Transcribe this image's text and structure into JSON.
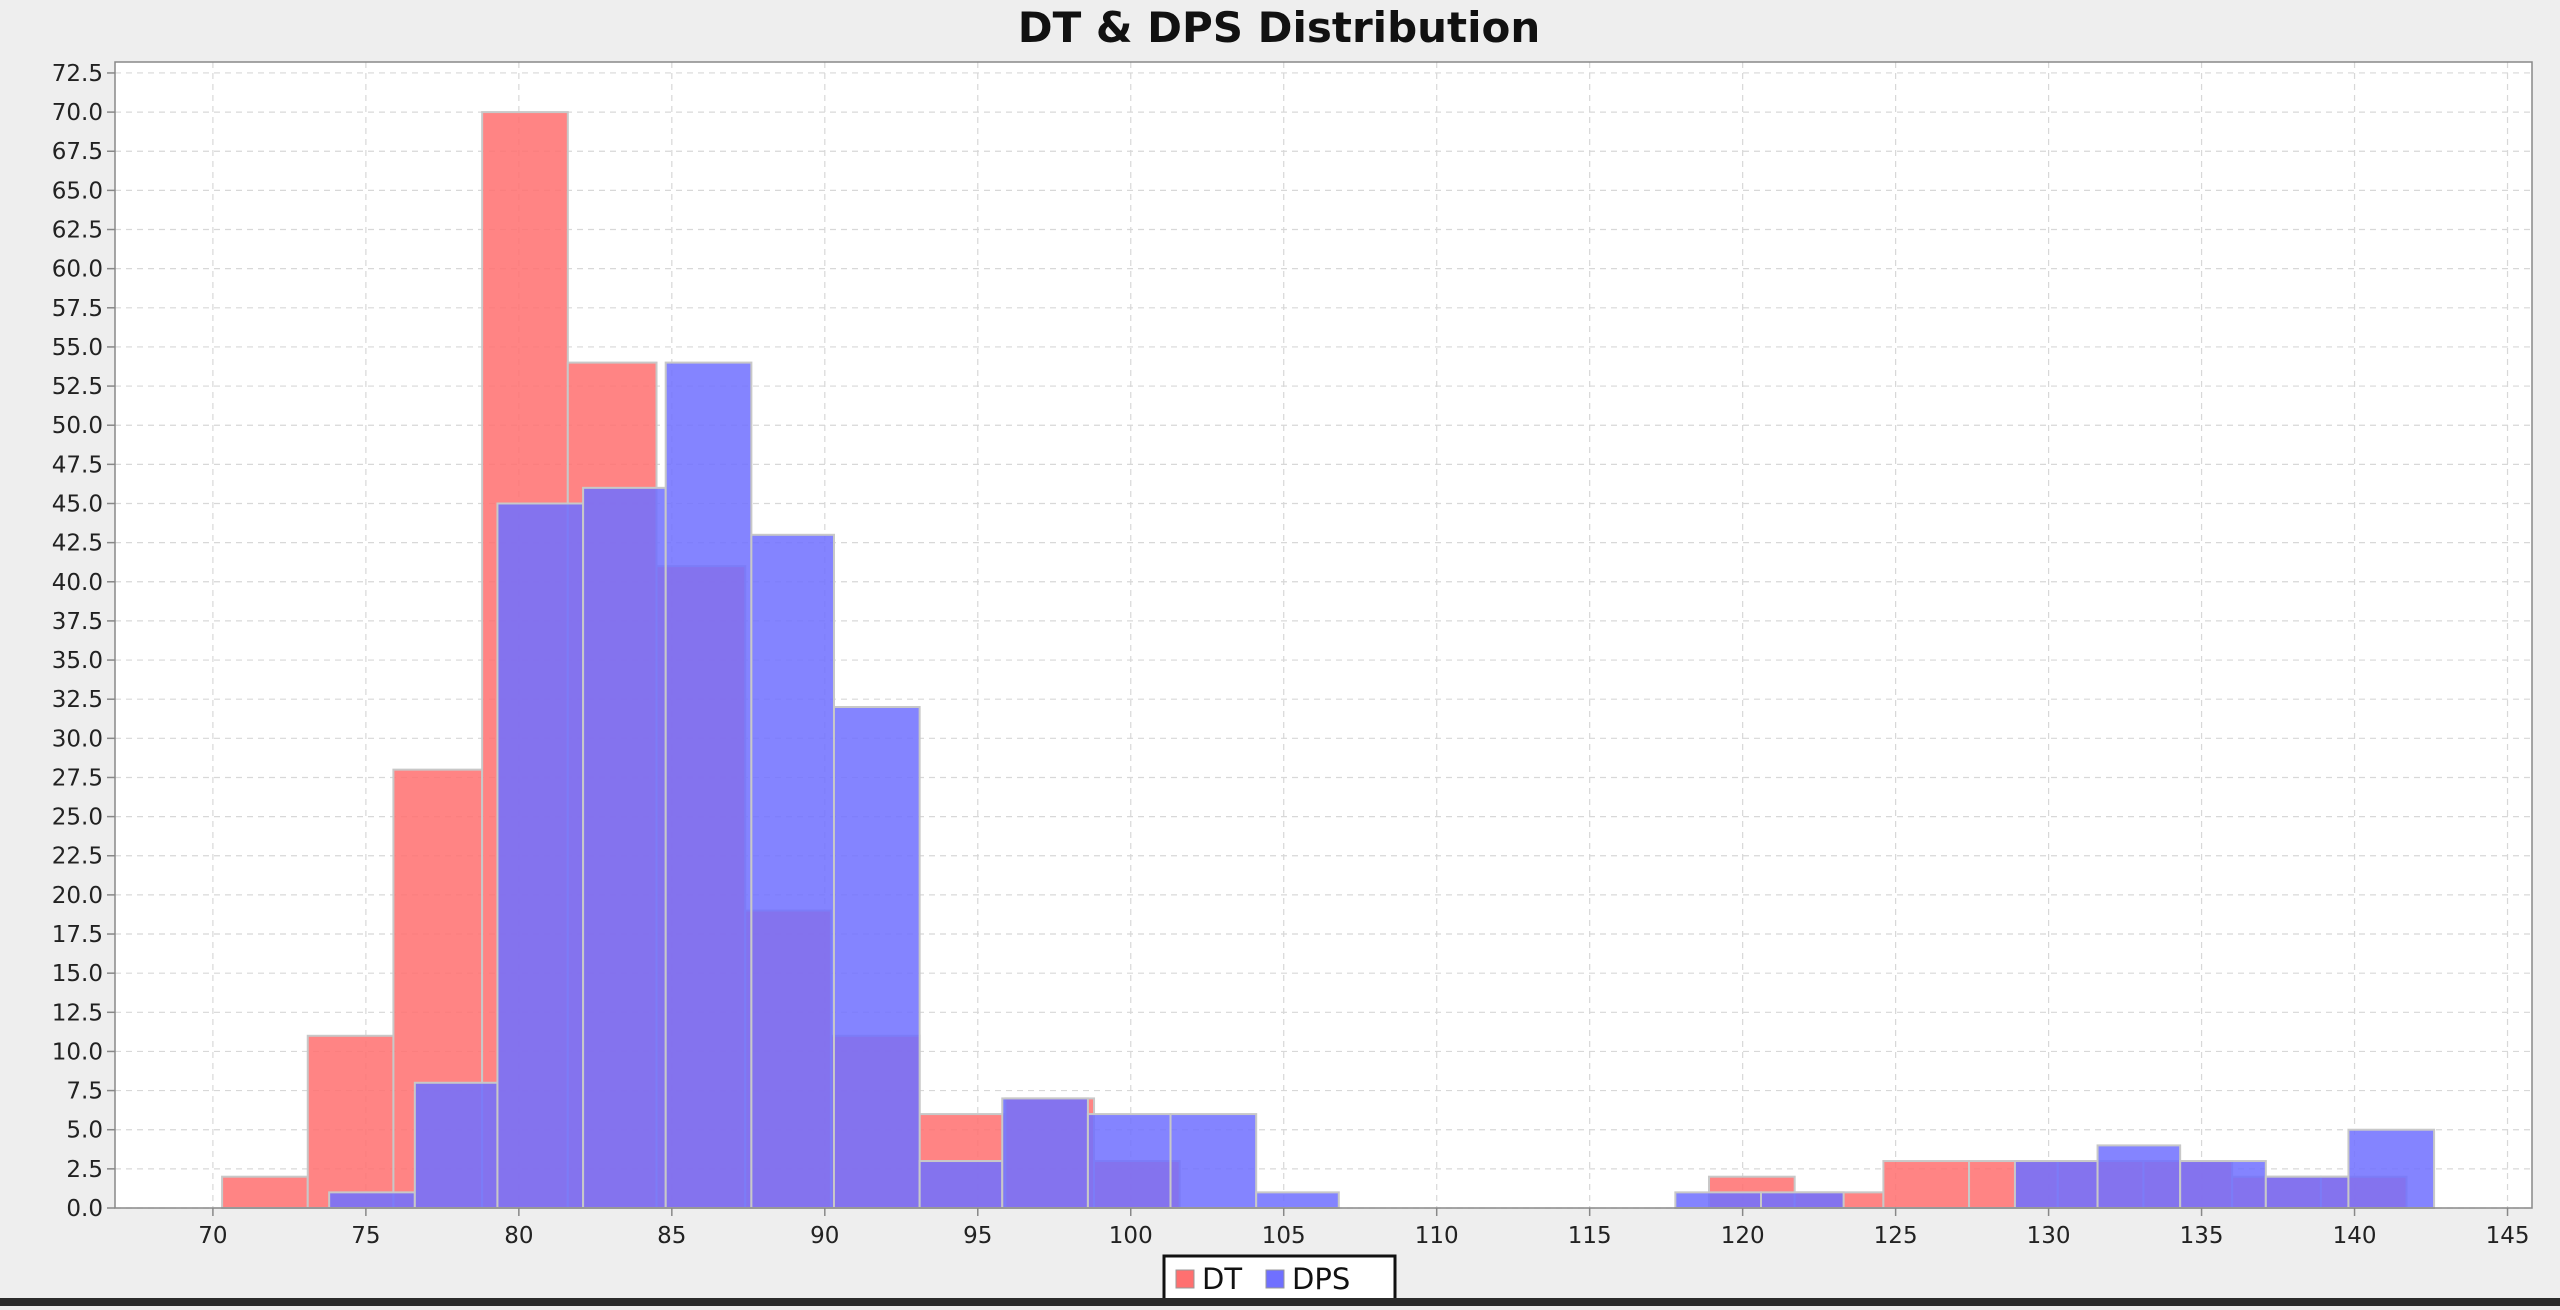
{
  "chart_data": {
    "type": "bar",
    "title": "DT & DPS Distribution",
    "xlabel": "",
    "ylabel": "",
    "xlim": [
      66.8,
      145.8
    ],
    "ylim": [
      0,
      73.2
    ],
    "x_ticks": [
      "70",
      "75",
      "80",
      "85",
      "90",
      "95",
      "100",
      "105",
      "110",
      "115",
      "120",
      "125",
      "130",
      "135",
      "140",
      "145"
    ],
    "y_ticks": [
      "0.0",
      "2.5",
      "5.0",
      "7.5",
      "10.0",
      "12.5",
      "15.0",
      "17.5",
      "20.0",
      "22.5",
      "25.0",
      "27.5",
      "30.0",
      "32.5",
      "35.0",
      "37.5",
      "40.0",
      "42.5",
      "45.0",
      "47.5",
      "50.0",
      "52.5",
      "55.0",
      "57.5",
      "60.0",
      "62.5",
      "65.0",
      "67.5",
      "70.0",
      "72.5"
    ],
    "grid": true,
    "legend": "bottom-center",
    "series": [
      {
        "name": "DT",
        "color": "#ff7070",
        "bins": [
          {
            "x0": 70.3,
            "x1": 73.1,
            "value": 2
          },
          {
            "x0": 73.1,
            "x1": 75.9,
            "value": 11
          },
          {
            "x0": 75.9,
            "x1": 78.8,
            "value": 28
          },
          {
            "x0": 78.8,
            "x1": 81.6,
            "value": 70
          },
          {
            "x0": 81.6,
            "x1": 84.5,
            "value": 54
          },
          {
            "x0": 84.5,
            "x1": 87.4,
            "value": 41
          },
          {
            "x0": 87.4,
            "x1": 90.2,
            "value": 19
          },
          {
            "x0": 90.2,
            "x1": 93.1,
            "value": 11
          },
          {
            "x0": 93.1,
            "x1": 95.9,
            "value": 6
          },
          {
            "x0": 95.9,
            "x1": 98.8,
            "value": 7
          },
          {
            "x0": 98.8,
            "x1": 101.6,
            "value": 3
          },
          {
            "x0": 118.9,
            "x1": 121.7,
            "value": 2
          },
          {
            "x0": 121.7,
            "x1": 124.6,
            "value": 1
          },
          {
            "x0": 124.6,
            "x1": 127.4,
            "value": 3
          },
          {
            "x0": 127.4,
            "x1": 130.3,
            "value": 3
          },
          {
            "x0": 130.3,
            "x1": 133.1,
            "value": 3
          },
          {
            "x0": 133.1,
            "x1": 136.0,
            "value": 3
          },
          {
            "x0": 136.0,
            "x1": 138.9,
            "value": 2
          },
          {
            "x0": 138.9,
            "x1": 141.7,
            "value": 2
          }
        ]
      },
      {
        "name": "DPS",
        "color": "#7070ff",
        "bins": [
          {
            "x0": 73.8,
            "x1": 76.6,
            "value": 1
          },
          {
            "x0": 76.6,
            "x1": 79.3,
            "value": 8
          },
          {
            "x0": 79.3,
            "x1": 82.1,
            "value": 45
          },
          {
            "x0": 82.1,
            "x1": 84.8,
            "value": 46
          },
          {
            "x0": 84.8,
            "x1": 87.6,
            "value": 54
          },
          {
            "x0": 87.6,
            "x1": 90.3,
            "value": 43
          },
          {
            "x0": 90.3,
            "x1": 93.1,
            "value": 32
          },
          {
            "x0": 93.1,
            "x1": 95.8,
            "value": 3
          },
          {
            "x0": 95.8,
            "x1": 98.6,
            "value": 7
          },
          {
            "x0": 98.6,
            "x1": 101.3,
            "value": 6
          },
          {
            "x0": 101.3,
            "x1": 104.1,
            "value": 6
          },
          {
            "x0": 104.1,
            "x1": 106.8,
            "value": 1
          },
          {
            "x0": 117.8,
            "x1": 120.6,
            "value": 1
          },
          {
            "x0": 120.6,
            "x1": 123.3,
            "value": 1
          },
          {
            "x0": 128.9,
            "x1": 131.6,
            "value": 3
          },
          {
            "x0": 131.6,
            "x1": 134.3,
            "value": 4
          },
          {
            "x0": 134.3,
            "x1": 137.1,
            "value": 3
          },
          {
            "x0": 137.1,
            "x1": 139.8,
            "value": 2
          },
          {
            "x0": 139.8,
            "x1": 142.6,
            "value": 5
          }
        ]
      }
    ]
  }
}
